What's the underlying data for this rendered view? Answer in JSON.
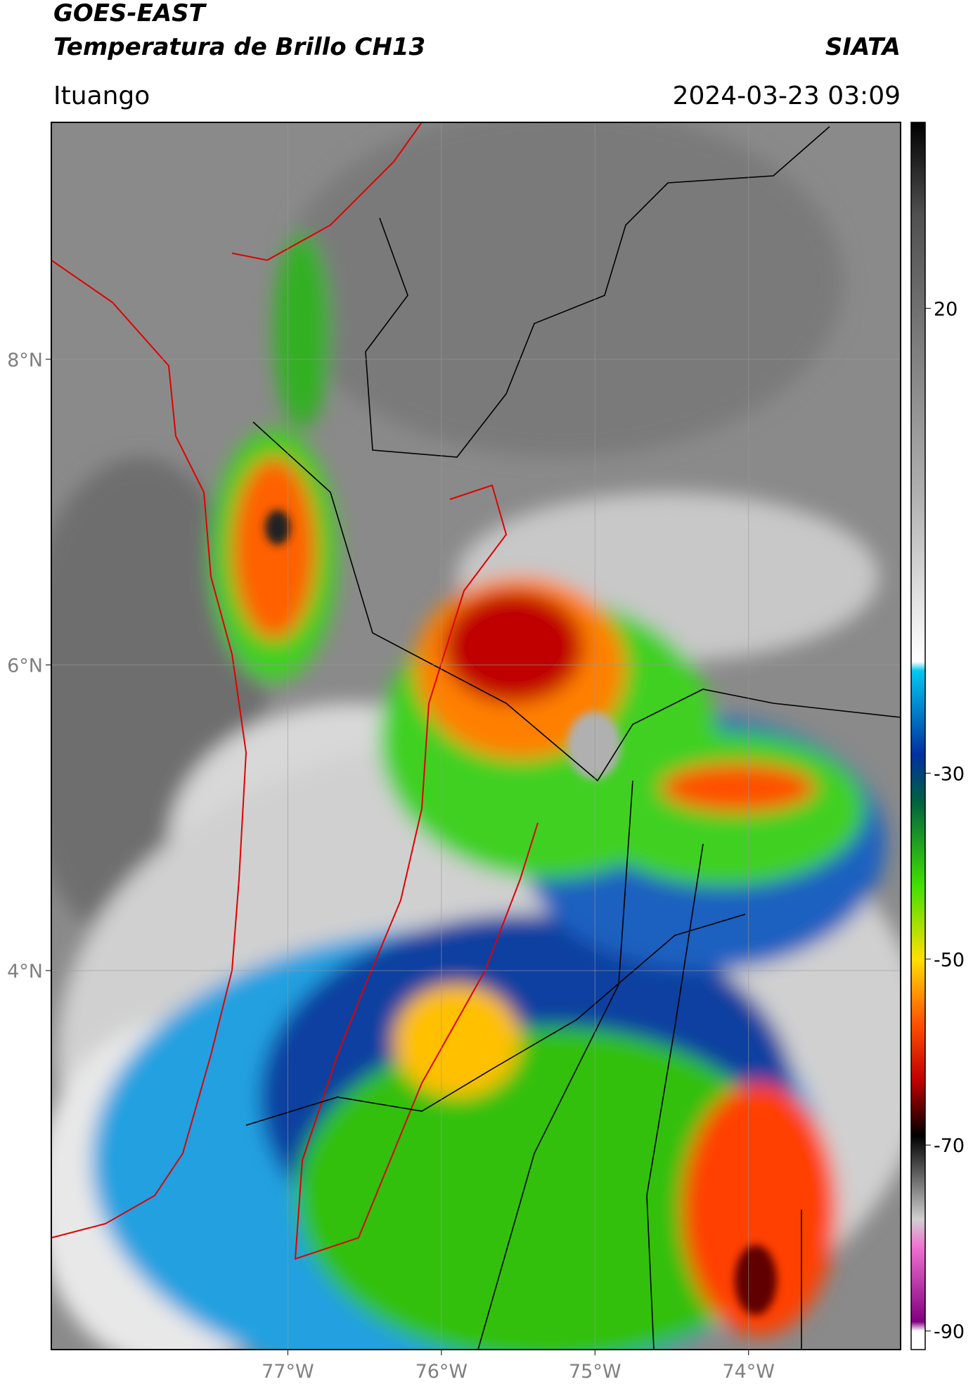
{
  "header": {
    "title": "GOES-EAST",
    "subtitle": "Temperatura de Brillo CH13",
    "brand": "SIATA",
    "location": "Ituango",
    "datetime": "2024-03-23 03:09"
  },
  "map": {
    "xlim": [
      -78.54,
      -73.01
    ],
    "ylim": [
      1.52,
      9.55
    ],
    "xticks": [
      {
        "value": -77,
        "label": "77°W"
      },
      {
        "value": -76,
        "label": "76°W"
      },
      {
        "value": -75,
        "label": "75°W"
      },
      {
        "value": -74,
        "label": "74°W"
      }
    ],
    "yticks": [
      {
        "value": 8,
        "label": "8°N"
      },
      {
        "value": 6,
        "label": "6°N"
      },
      {
        "value": 4,
        "label": "4°N"
      }
    ],
    "grid": true
  },
  "colorbar": {
    "lim": [
      -92,
      40
    ],
    "ticks": [
      20,
      -30,
      -50,
      -70,
      -90
    ],
    "stops": [
      {
        "value": 40,
        "color": "#000000"
      },
      {
        "value": 30,
        "color": "#505050"
      },
      {
        "value": 0,
        "color": "#b0b0b0"
      },
      {
        "value": -18,
        "color": "#ffffff"
      },
      {
        "value": -19,
        "color": "#00c8f0"
      },
      {
        "value": -28,
        "color": "#0030a0"
      },
      {
        "value": -33,
        "color": "#006040"
      },
      {
        "value": -42,
        "color": "#40e000"
      },
      {
        "value": -50,
        "color": "#ffe000"
      },
      {
        "value": -57,
        "color": "#ff5000"
      },
      {
        "value": -63,
        "color": "#c00000"
      },
      {
        "value": -69,
        "color": "#000000"
      },
      {
        "value": -78,
        "color": "#d0d0d0"
      },
      {
        "value": -81,
        "color": "#f070d0"
      },
      {
        "value": -89,
        "color": "#800080"
      },
      {
        "value": -90,
        "color": "#ffffff"
      }
    ]
  }
}
